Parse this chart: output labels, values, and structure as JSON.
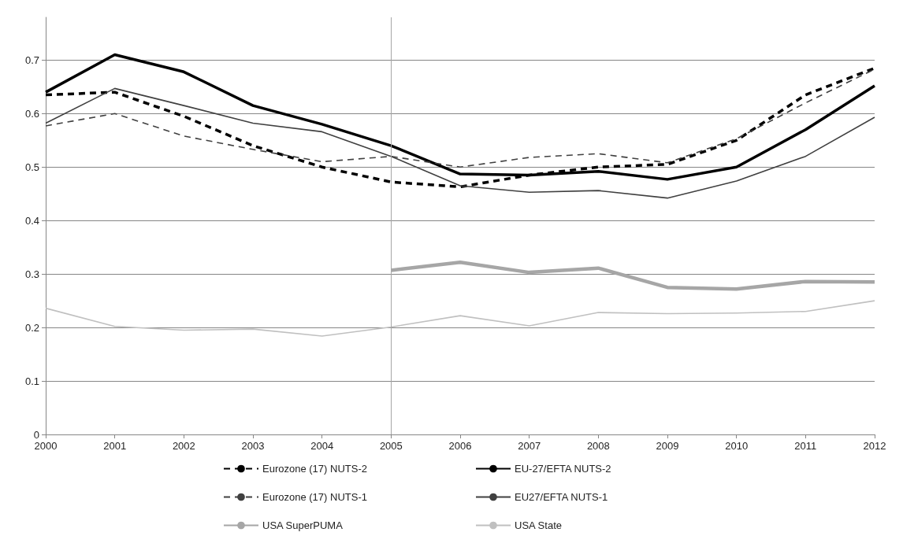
{
  "chart_data": {
    "type": "line",
    "categories": [
      "2000",
      "2001",
      "2002",
      "2003",
      "2004",
      "2005",
      "2006",
      "2007",
      "2008",
      "2009",
      "2010",
      "2011",
      "2012"
    ],
    "series": [
      {
        "name": "Eurozone (17) NUTS-2",
        "color": "#000000",
        "line_style": "dashed",
        "values": [
          0.635,
          0.64,
          0.595,
          0.54,
          0.5,
          0.472,
          0.463,
          0.485,
          0.5,
          0.505,
          0.55,
          0.635,
          0.685
        ]
      },
      {
        "name": "EU-27/EFTA NUTS-2",
        "color": "#000000",
        "line_style": "solid",
        "values": [
          0.64,
          0.71,
          0.678,
          0.615,
          0.58,
          0.54,
          0.487,
          0.485,
          0.492,
          0.477,
          0.5,
          0.57,
          0.652
        ]
      },
      {
        "name": "Eurozone (17) NUTS-1",
        "color": "#404040",
        "line_style": "dashed",
        "values": [
          0.577,
          0.6,
          0.558,
          0.533,
          0.51,
          0.52,
          0.5,
          0.518,
          0.525,
          0.508,
          0.553,
          0.62,
          0.683
        ]
      },
      {
        "name": "EU27/EFTA NUTS-1",
        "color": "#404040",
        "line_style": "solid",
        "values": [
          0.582,
          0.647,
          0.615,
          0.582,
          0.566,
          0.52,
          0.465,
          0.453,
          0.456,
          0.442,
          0.474,
          0.52,
          0.593
        ]
      },
      {
        "name": "USA SuperPUMA",
        "color": "#a6a6a6",
        "line_style": "solid",
        "values": [
          null,
          null,
          null,
          null,
          null,
          0.307,
          0.322,
          0.303,
          0.311,
          0.275,
          0.272,
          0.286,
          0.285
        ]
      },
      {
        "name": "USA State",
        "color": "#c0c0c0",
        "line_style": "solid",
        "values": [
          0.236,
          0.202,
          0.195,
          0.197,
          0.184,
          0.201,
          0.222,
          0.203,
          0.228,
          0.226,
          0.227,
          0.23,
          0.25
        ]
      }
    ],
    "ylim": [
      0,
      0.78
    ],
    "yticks": [
      0,
      0.1,
      0.2,
      0.3,
      0.4,
      0.5,
      0.6,
      0.7
    ],
    "grid": "y",
    "legend": "bottom",
    "marker": "none",
    "ref_lines": [
      {
        "axis": "x",
        "value": "2005",
        "color": "#a6a6a6"
      }
    ]
  }
}
